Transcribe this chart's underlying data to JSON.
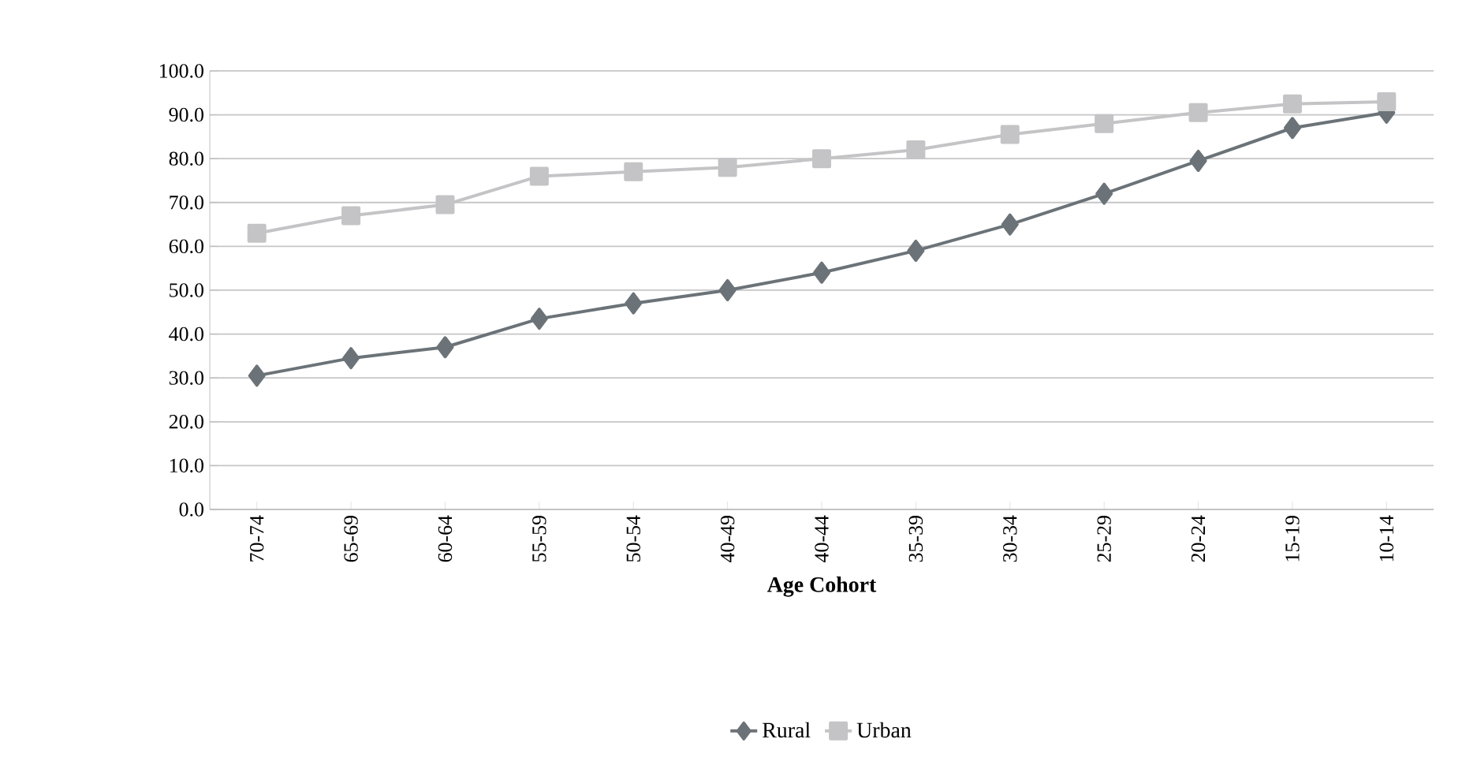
{
  "chart_data": {
    "type": "line",
    "xlabel": "Age Cohort",
    "categories": [
      "70-74",
      "65-69",
      "60-64",
      "55-59",
      "50-54",
      "40-49",
      "40-44",
      "35-39",
      "30-34",
      "25-29",
      "20-24",
      "15-19",
      "10-14"
    ],
    "series": [
      {
        "name": "Rural",
        "color": "#6b7378",
        "marker": "diamond",
        "values": [
          30.5,
          34.5,
          37,
          43.5,
          47,
          50,
          54,
          59,
          65,
          72,
          79.5,
          87,
          90.5
        ]
      },
      {
        "name": "Urban",
        "color": "#c4c4c6",
        "marker": "square",
        "values": [
          63,
          67,
          69.5,
          76,
          77,
          78,
          80,
          82,
          85.5,
          88,
          90.5,
          92.5,
          93
        ]
      }
    ],
    "ylim": [
      0,
      100
    ],
    "yticks": [
      {
        "value": 0,
        "label": "0.0"
      },
      {
        "value": 10,
        "label": "10.0"
      },
      {
        "value": 20,
        "label": "20.0"
      },
      {
        "value": 30,
        "label": "30.0"
      },
      {
        "value": 40,
        "label": "40.0"
      },
      {
        "value": 50,
        "label": "50.0"
      },
      {
        "value": 60,
        "label": "60.0"
      },
      {
        "value": 70,
        "label": "70.0"
      },
      {
        "value": 80,
        "label": "80.0"
      },
      {
        "value": 90,
        "label": "90.0"
      },
      {
        "value": 100,
        "label": "100.0"
      }
    ],
    "grid": "y",
    "legend": "bottom",
    "line_style": "solid"
  }
}
